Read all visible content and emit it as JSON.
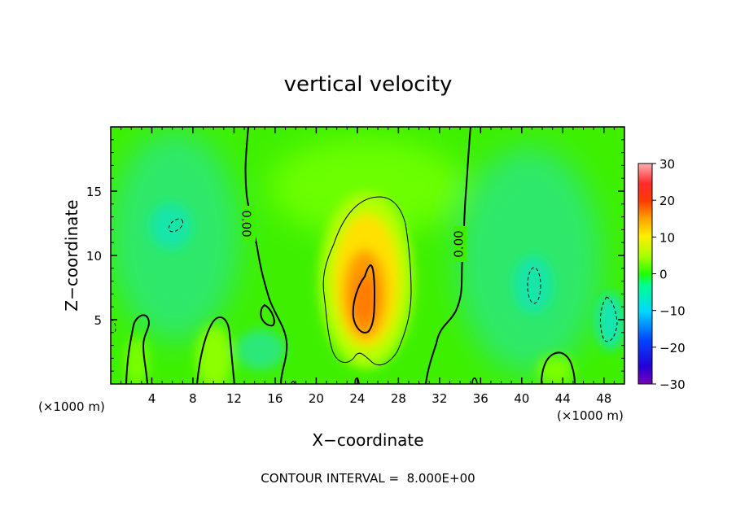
{
  "chart_data": {
    "type": "heatmap",
    "title": "vertical velocity",
    "xlabel": "X−coordinate",
    "ylabel": "Z−coordinate",
    "x_unit_left": "(×1000 m)",
    "x_unit_right": "(×1000 m)",
    "xlim": [
      0,
      50
    ],
    "ylim": [
      0,
      20
    ],
    "x_ticks": [
      4,
      8,
      12,
      16,
      20,
      24,
      28,
      32,
      36,
      40,
      44,
      48
    ],
    "y_ticks": [
      5,
      10,
      15
    ],
    "contour_labels": [
      "0.00",
      "0.00"
    ],
    "footer": "CONTOUR INTERVAL =  8.000E+00",
    "colorbar": {
      "range": [
        -30,
        30
      ],
      "ticks": [
        30,
        20,
        10,
        0,
        -10,
        -20,
        -30
      ],
      "tick_labels": [
        "30",
        "20",
        "10",
        "0",
        "−10",
        "−20",
        "−30"
      ]
    },
    "features": [
      {
        "kind": "updraft",
        "x": 25,
        "z": 7,
        "peak": 20
      },
      {
        "kind": "updraft",
        "x": 10.5,
        "z": 2.5,
        "peak": 6
      },
      {
        "kind": "updraft",
        "x": 2.5,
        "z": 2,
        "peak": 4
      },
      {
        "kind": "updraft",
        "x": 43,
        "z": 1.5,
        "peak": 4
      },
      {
        "kind": "downdraft",
        "x": 6,
        "z": 12.5,
        "peak": -8
      },
      {
        "kind": "downdraft",
        "x": 41,
        "z": 8,
        "peak": -9
      },
      {
        "kind": "downdraft",
        "x": 48,
        "z": 5,
        "peak": -10
      },
      {
        "kind": "downdraft",
        "x": 15,
        "z": 3,
        "peak": -5
      },
      {
        "kind": "downdraft",
        "x": 36,
        "z": 4,
        "peak": -4
      }
    ]
  }
}
